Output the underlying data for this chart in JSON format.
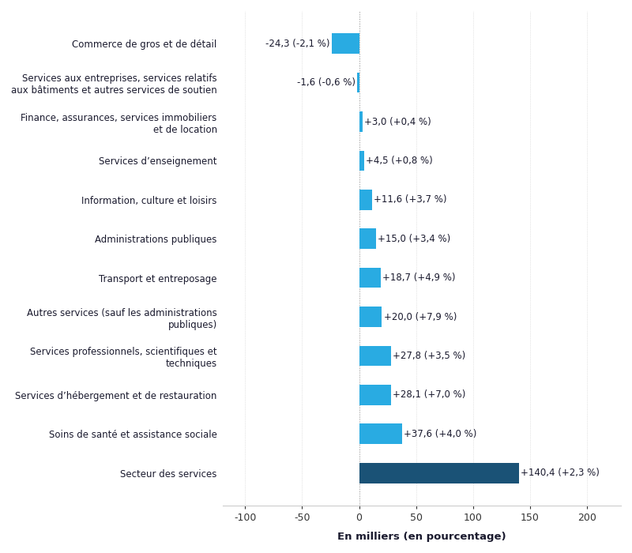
{
  "categories": [
    "Commerce de gros et de détail",
    "Services aux entreprises, services relatifs\naux bâtiments et autres services de soutien",
    "Finance, assurances, services immobiliers\net de location",
    "Services d’enseignement",
    "Information, culture et loisirs",
    "Administrations publiques",
    "Transport et entreposage",
    "Autres services (sauf les administrations\npubliques)",
    "Services professionnels, scientifiques et\ntechniques",
    "Services d’hébergement et de restauration",
    "Soins de santé et assistance sociale",
    "Secteur des services"
  ],
  "values": [
    -24.3,
    -1.6,
    3.0,
    4.5,
    11.6,
    15.0,
    18.7,
    20.0,
    27.8,
    28.1,
    37.6,
    140.4
  ],
  "labels": [
    "-24,3 (-2,1 %)",
    "-1,6 (-0,6 %)",
    "+3,0 (+0,4 %)",
    "+4,5 (+0,8 %)",
    "+11,6 (+3,7 %)",
    "+15,0 (+3,4 %)",
    "+18,7 (+4,9 %)",
    "+20,0 (+7,9 %)",
    "+27,8 (+3,5 %)",
    "+28,1 (+7,0 %)",
    "+37,6 (+4,0 %)",
    "+140,4 (+2,3 %)"
  ],
  "bar_colors": [
    "#29ABE2",
    "#29ABE2",
    "#29ABE2",
    "#29ABE2",
    "#29ABE2",
    "#29ABE2",
    "#29ABE2",
    "#29ABE2",
    "#29ABE2",
    "#29ABE2",
    "#29ABE2",
    "#1A5276"
  ],
  "label_color": "#1A1A2E",
  "category_color": "#1A1A2E",
  "xlabel": "En milliers (en pourcentage)",
  "xlim": [
    -120,
    230
  ],
  "xticks": [
    -100,
    -50,
    0,
    50,
    100,
    150,
    200
  ],
  "background_color": "#FFFFFF",
  "label_fontsize": 8.5,
  "category_fontsize": 8.5,
  "xlabel_fontsize": 9.5
}
